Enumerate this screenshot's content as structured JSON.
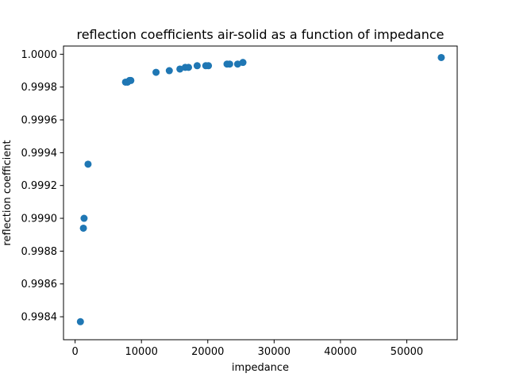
{
  "chart_data": {
    "type": "scatter",
    "title": "reflection coefficients air-solid as a function of impedance",
    "xlabel": "impedance",
    "ylabel": "reflection coefficient",
    "xlim": [
      -1750,
      57600
    ],
    "ylim": [
      0.99826,
      1.00005
    ],
    "xticks": [
      {
        "value": 0,
        "label": "0"
      },
      {
        "value": 10000,
        "label": "10000"
      },
      {
        "value": 20000,
        "label": "20000"
      },
      {
        "value": 30000,
        "label": "30000"
      },
      {
        "value": 40000,
        "label": "40000"
      },
      {
        "value": 50000,
        "label": "50000"
      }
    ],
    "yticks": [
      {
        "value": 0.9984,
        "label": "0.9984"
      },
      {
        "value": 0.9986,
        "label": "0.9986"
      },
      {
        "value": 0.9988,
        "label": "0.9988"
      },
      {
        "value": 0.999,
        "label": "0.9990"
      },
      {
        "value": 0.9992,
        "label": "0.9992"
      },
      {
        "value": 0.9994,
        "label": "0.9994"
      },
      {
        "value": 0.9996,
        "label": "0.9996"
      },
      {
        "value": 0.9998,
        "label": "0.9998"
      },
      {
        "value": 1.0,
        "label": "1.0000"
      }
    ],
    "grid": false,
    "marker_color": "#1f77b4",
    "points": [
      {
        "x": 800,
        "y": 0.99837
      },
      {
        "x": 1250,
        "y": 0.99894
      },
      {
        "x": 1350,
        "y": 0.999
      },
      {
        "x": 1950,
        "y": 0.99933
      },
      {
        "x": 7600,
        "y": 0.99983
      },
      {
        "x": 7900,
        "y": 0.99983
      },
      {
        "x": 8200,
        "y": 0.99984
      },
      {
        "x": 8400,
        "y": 0.99984
      },
      {
        "x": 12200,
        "y": 0.99989
      },
      {
        "x": 14200,
        "y": 0.9999
      },
      {
        "x": 15800,
        "y": 0.99991
      },
      {
        "x": 16600,
        "y": 0.99992
      },
      {
        "x": 17100,
        "y": 0.99992
      },
      {
        "x": 18400,
        "y": 0.99993
      },
      {
        "x": 19700,
        "y": 0.99993
      },
      {
        "x": 20100,
        "y": 0.99993
      },
      {
        "x": 22900,
        "y": 0.99994
      },
      {
        "x": 23300,
        "y": 0.99994
      },
      {
        "x": 24500,
        "y": 0.99994
      },
      {
        "x": 25300,
        "y": 0.99995
      },
      {
        "x": 55200,
        "y": 0.99998
      }
    ]
  }
}
